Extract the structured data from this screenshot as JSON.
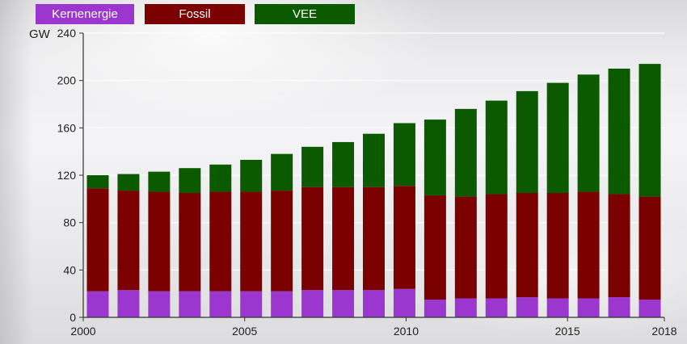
{
  "legend": [
    {
      "label": "Kernenergie",
      "color": "#9b37cf"
    },
    {
      "label": "Fossil",
      "color": "#7b0000"
    },
    {
      "label": "VEE",
      "color": "#0b5a00"
    }
  ],
  "chart_data": {
    "type": "bar",
    "stacked": true,
    "ylabel": "GW",
    "ylim": [
      0,
      240
    ],
    "yticks": [
      0,
      40,
      80,
      120,
      160,
      200,
      240
    ],
    "x_tick_labels": [
      "2000",
      "2005",
      "2010",
      "2015",
      "2018"
    ],
    "categories": [
      2000,
      2001,
      2002,
      2003,
      2004,
      2005,
      2006,
      2007,
      2008,
      2009,
      2010,
      2011,
      2012,
      2013,
      2014,
      2015,
      2016,
      2017,
      2018
    ],
    "series": [
      {
        "name": "Kernenergie",
        "color": "#9b37cf",
        "values": [
          22,
          23,
          22,
          22,
          22,
          22,
          22,
          23,
          23,
          23,
          24,
          15,
          16,
          16,
          17,
          16,
          16,
          17,
          15
        ]
      },
      {
        "name": "Fossil",
        "color": "#7b0000",
        "values": [
          87,
          84,
          84,
          83,
          84,
          84,
          85,
          87,
          87,
          87,
          87,
          88,
          86,
          88,
          88,
          89,
          90,
          87,
          87
        ]
      },
      {
        "name": "VEE",
        "color": "#0b5a00",
        "values": [
          11,
          14,
          17,
          21,
          23,
          27,
          31,
          34,
          38,
          45,
          53,
          64,
          74,
          79,
          86,
          93,
          99,
          106,
          112
        ]
      }
    ]
  }
}
